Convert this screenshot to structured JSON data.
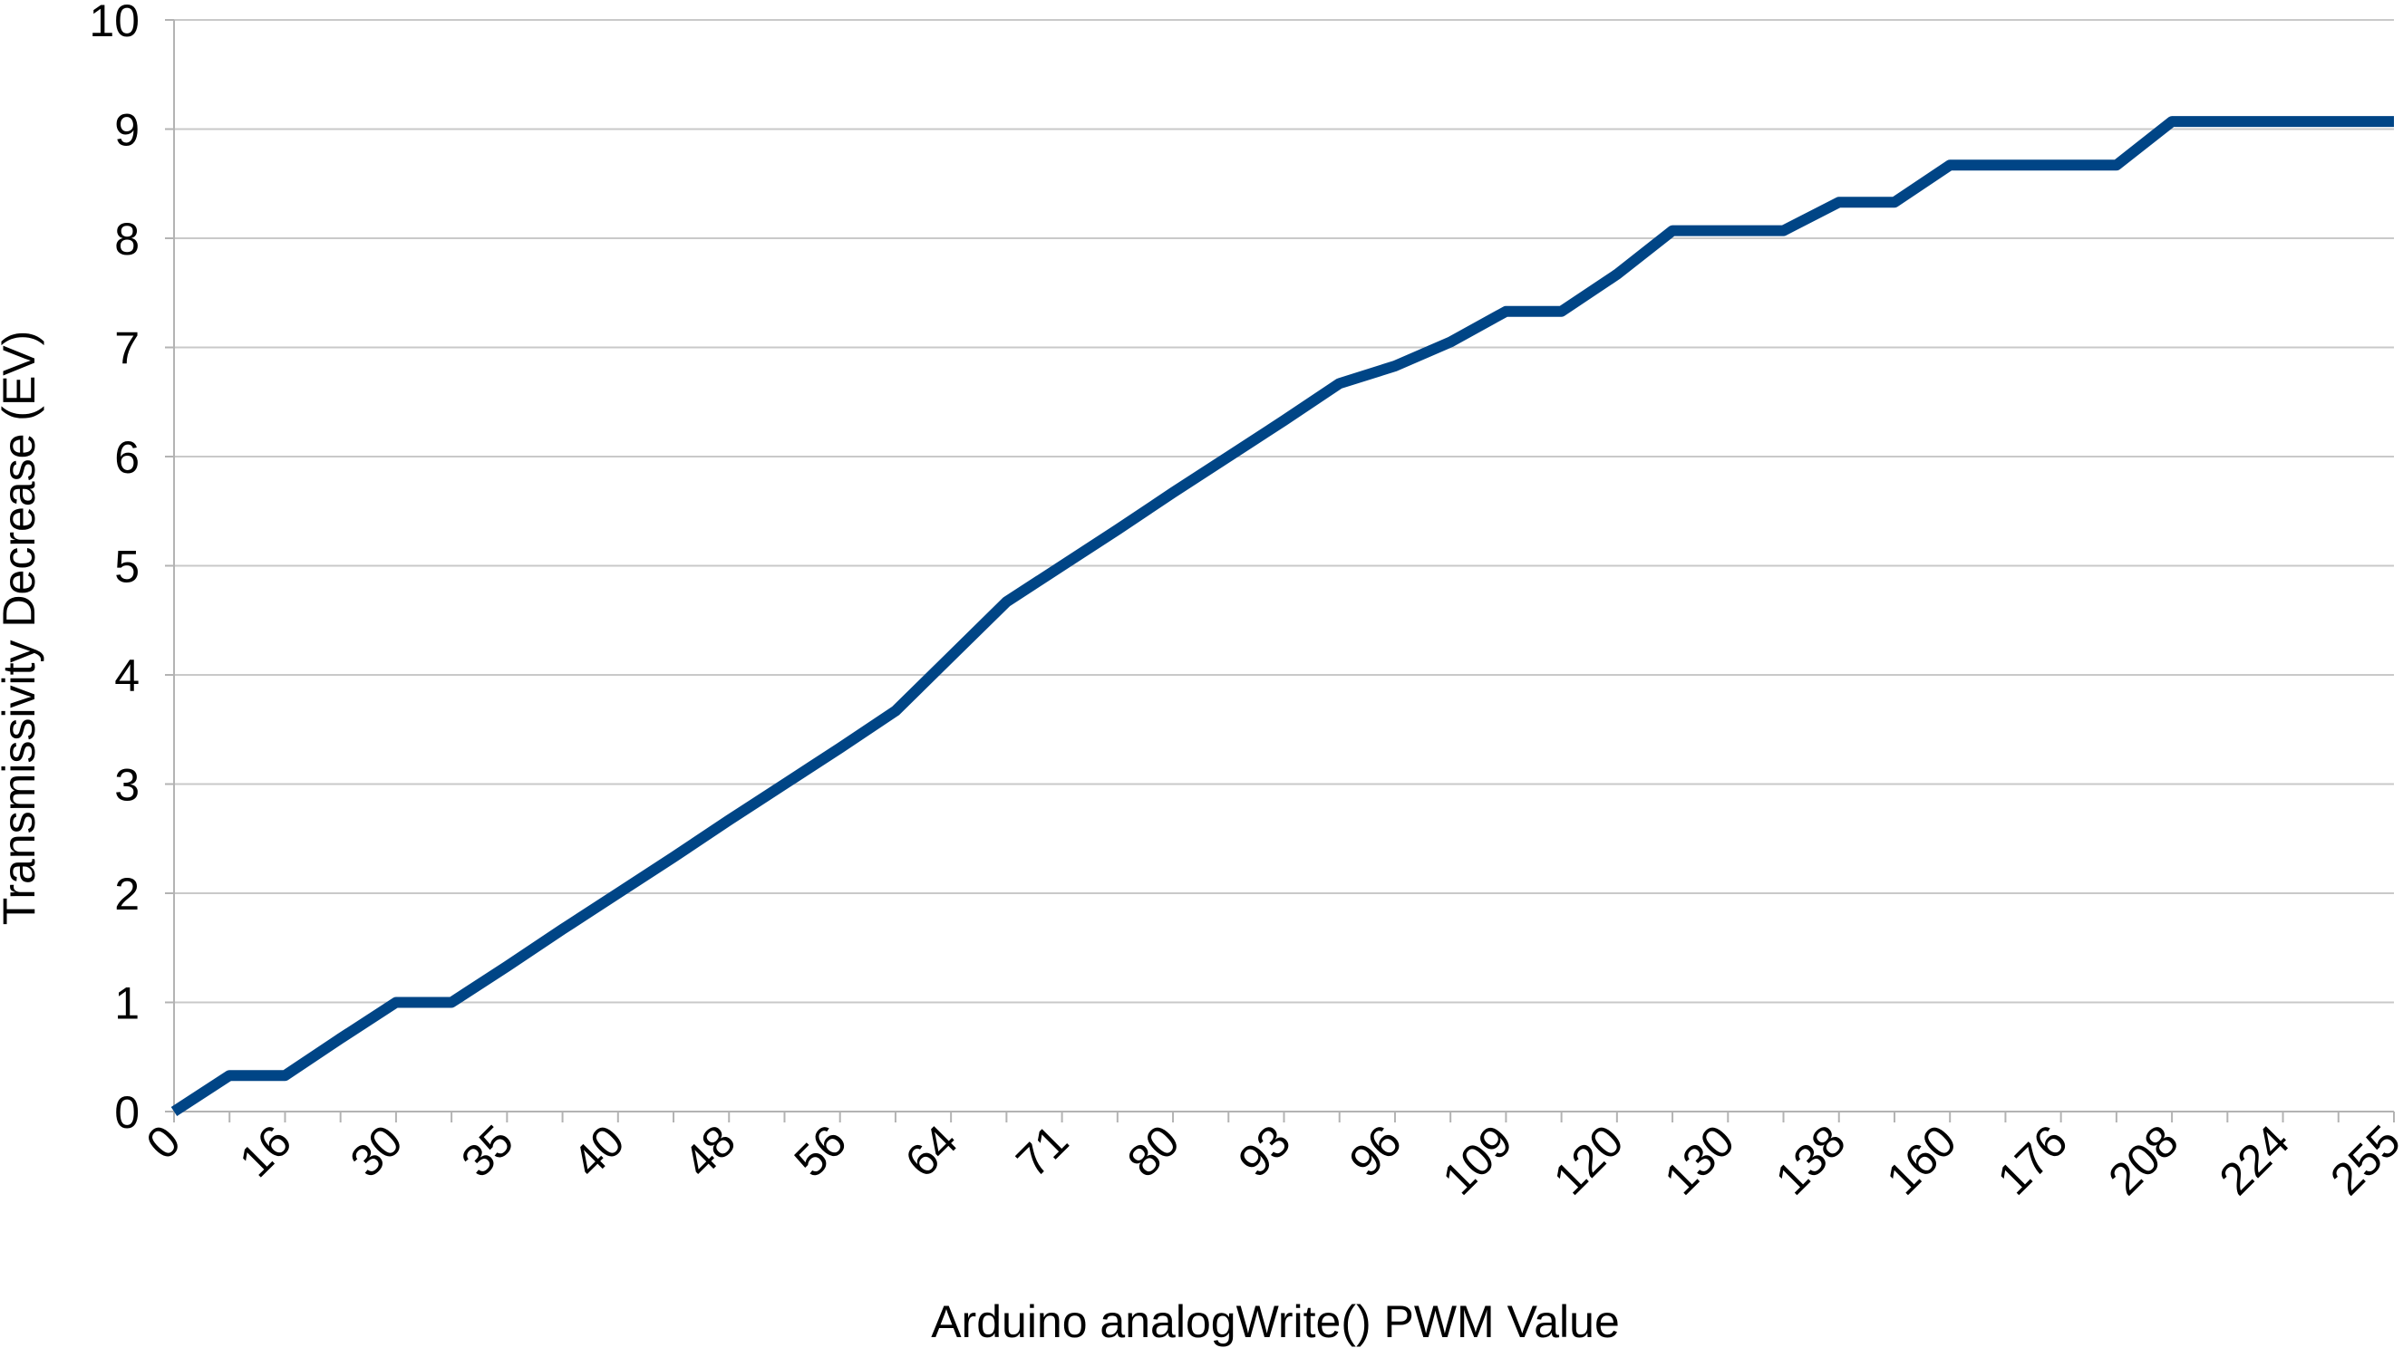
{
  "chart_data": {
    "type": "line",
    "title": "",
    "xlabel": "Arduino analogWrite() PWM Value",
    "ylabel": "Transmissivity Decrease (EV)",
    "ylim": [
      0,
      10
    ],
    "yticks": [
      "0",
      "1",
      "2",
      "3",
      "4",
      "5",
      "6",
      "7",
      "8",
      "9",
      "10"
    ],
    "grid": "horizontal",
    "legend": "none",
    "line_color": "#004586",
    "categories": [
      "0",
      "",
      "16",
      "",
      "30",
      "",
      "35",
      "",
      "40",
      "",
      "48",
      "",
      "56",
      "",
      "64",
      "",
      "71",
      "",
      "80",
      "",
      "93",
      "",
      "96",
      "",
      "109",
      "",
      "120",
      "",
      "130",
      "",
      "138",
      "",
      "160",
      "",
      "176",
      "",
      "208",
      "",
      "224",
      "",
      "255"
    ],
    "series": [
      {
        "values": [
          0,
          0.33,
          0.33,
          0.67,
          1.0,
          1.0,
          1.33,
          1.67,
          2.0,
          2.33,
          2.67,
          3.0,
          3.33,
          3.67,
          4.17,
          4.67,
          5.0,
          5.33,
          5.67,
          6.0,
          6.33,
          6.67,
          6.83,
          7.05,
          7.33,
          7.33,
          7.67,
          8.07,
          8.07,
          8.07,
          8.33,
          8.33,
          8.67,
          8.67,
          8.67,
          8.67,
          9.07,
          9.07,
          9.07,
          9.07,
          9.07
        ]
      }
    ]
  }
}
